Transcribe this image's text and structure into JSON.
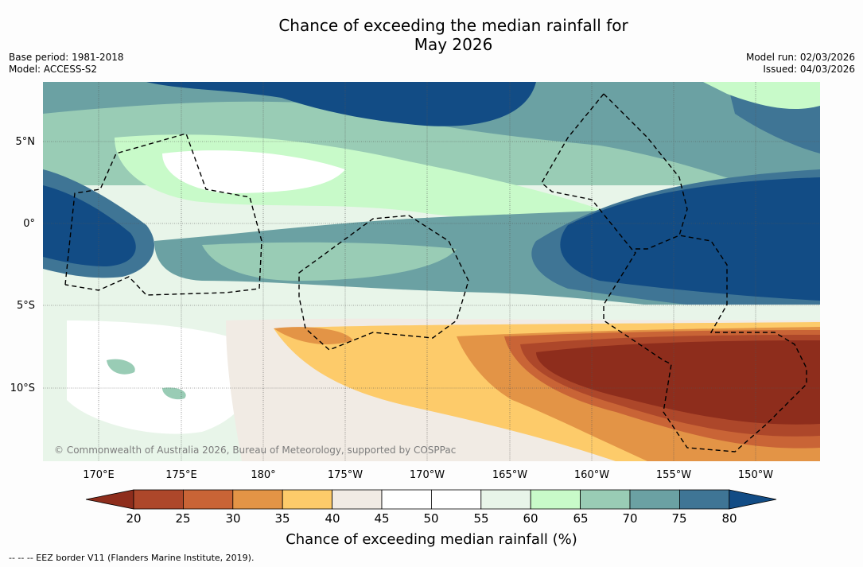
{
  "title_line1": "Chance of exceeding the median rainfall for",
  "title_line2": "May 2026",
  "base_period": "Base period: 1981-2018",
  "model": "Model: ACCESS-S2",
  "model_run": "Model run: 02/03/2026",
  "issued": "Issued: 04/03/2026",
  "copyright": "© Commonwealth of Australia 2026, Bureau of Meteorology, supported by COSPPac",
  "colorbar_label": "Chance of exceeding median rainfall (%)",
  "footnote": "--  --  -- EEZ border V11 (Flanders Marine Institute, 2019).",
  "lat_labels": [
    "5°N",
    "0°",
    "5°S",
    "10°S"
  ],
  "lon_labels": [
    "170°E",
    "175°E",
    "180°",
    "175°W",
    "170°W",
    "165°W",
    "160°W",
    "155°W",
    "150°W"
  ],
  "colorbar_ticks": [
    "20",
    "25",
    "30",
    "35",
    "40",
    "45",
    "50",
    "55",
    "60",
    "65",
    "70",
    "75",
    "80"
  ],
  "colors": {
    "below20": "#8e2d1c",
    "20-25": "#ad472a",
    "25-30": "#c96436",
    "30-35": "#e39446",
    "35-40": "#fdcb6a",
    "40-45": "#f1ebe4",
    "45-50": "#ffffff",
    "50-55": "#ffffff",
    "55-60": "#e8f5e9",
    "60-65": "#c8fac9",
    "65-70": "#99ccb5",
    "70-75": "#6ba1a3",
    "75-80": "#3f7595",
    "above80": "#124c85"
  }
}
